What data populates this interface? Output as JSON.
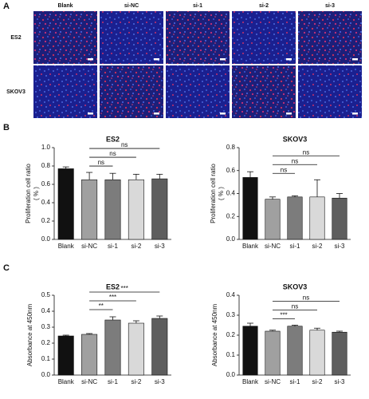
{
  "panels": {
    "a": "A",
    "b": "B",
    "c": "C"
  },
  "images": {
    "columns": [
      "Blank",
      "si-NC",
      "si-1",
      "si-2",
      "si-3"
    ],
    "rows": [
      "ES2",
      "SKOV3"
    ]
  },
  "chart_data": [
    {
      "type": "bar",
      "title": "ES2",
      "ylabel": "Proliferation cell ratio",
      "ylabel_unit": "( % )",
      "categories": [
        "Blank",
        "si-NC",
        "si-1",
        "si-2",
        "si-3"
      ],
      "values": [
        0.77,
        0.65,
        0.65,
        0.65,
        0.66
      ],
      "errors": [
        0.02,
        0.08,
        0.07,
        0.06,
        0.05
      ],
      "colors": [
        "#111111",
        "#a0a0a0",
        "#7c7c7c",
        "#d9d9d9",
        "#5e5e5e"
      ],
      "ylim": [
        0,
        1.0
      ],
      "yticks": [
        {
          "value": 0,
          "label": "0.0"
        },
        0.2,
        0.4,
        0.6,
        0.8,
        {
          "value": 1,
          "label": "1.0"
        }
      ],
      "brackets": [
        {
          "label": "ns",
          "between": [
            "si-NC",
            "si-1"
          ]
        },
        {
          "label": "ns",
          "between": [
            "si-NC",
            "si-2"
          ]
        },
        {
          "label": "ns",
          "between": [
            "si-NC",
            "si-3"
          ]
        }
      ]
    },
    {
      "type": "bar",
      "title": "SKOV3",
      "ylabel": "Proliferation cell ratio",
      "ylabel_unit": "( % )",
      "categories": [
        "Blank",
        "si-NC",
        "si-1",
        "si-2",
        "si-3"
      ],
      "values": [
        0.54,
        0.35,
        0.37,
        0.37,
        0.36
      ],
      "errors": [
        0.05,
        0.02,
        0.01,
        0.15,
        0.04
      ],
      "colors": [
        "#111111",
        "#a0a0a0",
        "#7c7c7c",
        "#d9d9d9",
        "#5e5e5e"
      ],
      "ylim": [
        0,
        0.8
      ],
      "yticks": [
        {
          "value": 0,
          "label": "0.0"
        },
        0.2,
        0.4,
        0.6,
        0.8
      ],
      "brackets": [
        {
          "label": "ns",
          "between": [
            "si-NC",
            "si-1"
          ]
        },
        {
          "label": "ns",
          "between": [
            "si-NC",
            "si-2"
          ]
        },
        {
          "label": "ns",
          "between": [
            "si-NC",
            "si-3"
          ]
        }
      ]
    },
    {
      "type": "bar",
      "title": "ES2",
      "ylabel": "Absorbance at 450nm",
      "categories": [
        "Blank",
        "si-NC",
        "si-1",
        "si-2",
        "si-3"
      ],
      "values": [
        0.245,
        0.255,
        0.345,
        0.325,
        0.355
      ],
      "errors": [
        0.005,
        0.005,
        0.02,
        0.015,
        0.015
      ],
      "colors": [
        "#111111",
        "#a0a0a0",
        "#7c7c7c",
        "#d9d9d9",
        "#5e5e5e"
      ],
      "ylim": [
        0,
        0.5
      ],
      "yticks": [
        {
          "value": 0,
          "label": "0.0"
        },
        0.1,
        0.2,
        0.3,
        0.4,
        0.5
      ],
      "brackets": [
        {
          "label": "**",
          "between": [
            "si-NC",
            "si-1"
          ]
        },
        {
          "label": "***",
          "between": [
            "si-NC",
            "si-2"
          ]
        },
        {
          "label": "***",
          "between": [
            "si-NC",
            "si-3"
          ]
        }
      ]
    },
    {
      "type": "bar",
      "title": "SKOV3",
      "ylabel": "Absorbance at 450nm",
      "categories": [
        "Blank",
        "si-NC",
        "si-1",
        "si-2",
        "si-3"
      ],
      "values": [
        0.245,
        0.22,
        0.245,
        0.225,
        0.215
      ],
      "errors": [
        0.015,
        0.005,
        0.005,
        0.01,
        0.005
      ],
      "colors": [
        "#111111",
        "#a0a0a0",
        "#7c7c7c",
        "#d9d9d9",
        "#5e5e5e"
      ],
      "ylim": [
        0,
        0.4
      ],
      "yticks": [
        {
          "value": 0,
          "label": "0.0"
        },
        0.1,
        0.2,
        0.3,
        0.4
      ],
      "brackets": [
        {
          "label": "***",
          "between": [
            "si-NC",
            "si-1"
          ]
        },
        {
          "label": "ns",
          "between": [
            "si-NC",
            "si-2"
          ]
        },
        {
          "label": "ns",
          "between": [
            "si-NC",
            "si-3"
          ]
        }
      ]
    }
  ]
}
